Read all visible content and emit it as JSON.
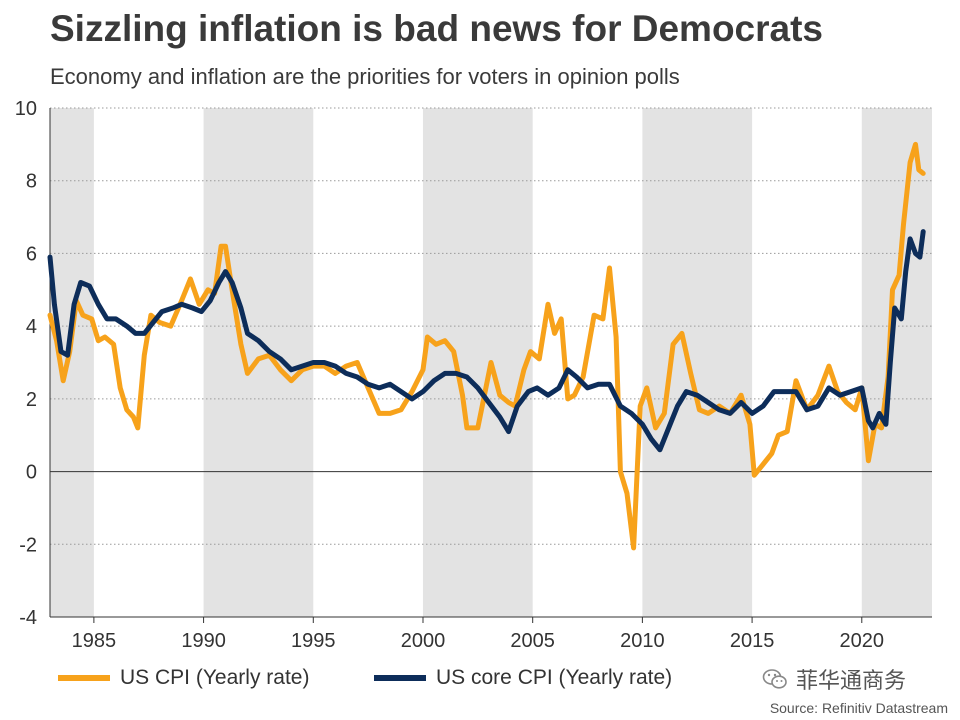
{
  "header": {
    "title": "Sizzling inflation is bad news for Democrats",
    "subtitle": "Economy and inflation are the priorities for voters in opinion polls"
  },
  "footer": {
    "source": "Source: Refinitiv Datastream",
    "watermark": "菲华通商务",
    "watermark_icon": "wechat-icon"
  },
  "chart_data": {
    "type": "line",
    "title": "Sizzling inflation is bad news for Democrats",
    "subtitle": "Economy and inflation are the priorities for voters in opinion polls",
    "xlabel": "",
    "ylabel": "",
    "xlim": [
      1983,
      2023.2
    ],
    "ylim": [
      -4,
      10
    ],
    "x_ticks": [
      1985,
      1990,
      1995,
      2000,
      2005,
      2010,
      2015,
      2020
    ],
    "y_ticks": [
      -4,
      -2,
      0,
      2,
      4,
      6,
      8,
      10
    ],
    "grid": "horizontal dotted",
    "zero_line": true,
    "recession_shading_note": "alternating grey shaded 5-year bands",
    "shaded_bands": [
      [
        1983,
        1985
      ],
      [
        1990,
        1995
      ],
      [
        2000,
        2005
      ],
      [
        2010,
        2015
      ],
      [
        2020,
        2023.2
      ]
    ],
    "legend_position": "bottom-left",
    "series": [
      {
        "name": "US CPI (Yearly rate)",
        "color": "#f7a21b",
        "points": [
          [
            1983.0,
            4.3
          ],
          [
            1983.3,
            3.6
          ],
          [
            1983.6,
            2.5
          ],
          [
            1983.9,
            3.3
          ],
          [
            1984.2,
            4.7
          ],
          [
            1984.5,
            4.3
          ],
          [
            1984.9,
            4.2
          ],
          [
            1985.2,
            3.6
          ],
          [
            1985.5,
            3.7
          ],
          [
            1985.9,
            3.5
          ],
          [
            1986.2,
            2.3
          ],
          [
            1986.5,
            1.7
          ],
          [
            1986.8,
            1.5
          ],
          [
            1987.0,
            1.2
          ],
          [
            1987.3,
            3.2
          ],
          [
            1987.6,
            4.3
          ],
          [
            1988.0,
            4.1
          ],
          [
            1988.5,
            4.0
          ],
          [
            1989.0,
            4.7
          ],
          [
            1989.4,
            5.3
          ],
          [
            1989.8,
            4.6
          ],
          [
            1990.2,
            5.0
          ],
          [
            1990.5,
            4.9
          ],
          [
            1990.8,
            6.2
          ],
          [
            1991.0,
            6.2
          ],
          [
            1991.3,
            5.0
          ],
          [
            1991.7,
            3.5
          ],
          [
            1992.0,
            2.7
          ],
          [
            1992.5,
            3.1
          ],
          [
            1993.0,
            3.2
          ],
          [
            1993.5,
            2.8
          ],
          [
            1994.0,
            2.5
          ],
          [
            1994.5,
            2.8
          ],
          [
            1995.0,
            2.9
          ],
          [
            1995.5,
            2.9
          ],
          [
            1996.0,
            2.7
          ],
          [
            1996.5,
            2.9
          ],
          [
            1997.0,
            3.0
          ],
          [
            1997.5,
            2.3
          ],
          [
            1998.0,
            1.6
          ],
          [
            1998.5,
            1.6
          ],
          [
            1999.0,
            1.7
          ],
          [
            1999.5,
            2.2
          ],
          [
            2000.0,
            2.8
          ],
          [
            2000.2,
            3.7
          ],
          [
            2000.6,
            3.5
          ],
          [
            2001.0,
            3.6
          ],
          [
            2001.4,
            3.3
          ],
          [
            2001.8,
            2.1
          ],
          [
            2002.0,
            1.2
          ],
          [
            2002.5,
            1.2
          ],
          [
            2002.8,
            2.1
          ],
          [
            2003.1,
            3.0
          ],
          [
            2003.5,
            2.1
          ],
          [
            2003.9,
            1.9
          ],
          [
            2004.2,
            1.8
          ],
          [
            2004.6,
            2.8
          ],
          [
            2004.9,
            3.3
          ],
          [
            2005.3,
            3.1
          ],
          [
            2005.7,
            4.6
          ],
          [
            2006.0,
            3.8
          ],
          [
            2006.3,
            4.2
          ],
          [
            2006.6,
            2.0
          ],
          [
            2006.9,
            2.1
          ],
          [
            2007.3,
            2.6
          ],
          [
            2007.8,
            4.3
          ],
          [
            2008.2,
            4.2
          ],
          [
            2008.5,
            5.6
          ],
          [
            2008.8,
            3.7
          ],
          [
            2009.0,
            0.0
          ],
          [
            2009.3,
            -0.6
          ],
          [
            2009.6,
            -2.1
          ],
          [
            2009.9,
            1.8
          ],
          [
            2010.2,
            2.3
          ],
          [
            2010.6,
            1.2
          ],
          [
            2011.0,
            1.6
          ],
          [
            2011.4,
            3.5
          ],
          [
            2011.8,
            3.8
          ],
          [
            2012.2,
            2.7
          ],
          [
            2012.6,
            1.7
          ],
          [
            2013.0,
            1.6
          ],
          [
            2013.5,
            1.8
          ],
          [
            2014.0,
            1.6
          ],
          [
            2014.5,
            2.1
          ],
          [
            2014.9,
            1.3
          ],
          [
            2015.1,
            -0.1
          ],
          [
            2015.5,
            0.2
          ],
          [
            2015.9,
            0.5
          ],
          [
            2016.2,
            1.0
          ],
          [
            2016.6,
            1.1
          ],
          [
            2017.0,
            2.5
          ],
          [
            2017.5,
            1.7
          ],
          [
            2018.0,
            2.1
          ],
          [
            2018.5,
            2.9
          ],
          [
            2018.9,
            2.2
          ],
          [
            2019.3,
            1.9
          ],
          [
            2019.7,
            1.7
          ],
          [
            2020.0,
            2.3
          ],
          [
            2020.3,
            0.3
          ],
          [
            2020.6,
            1.3
          ],
          [
            2020.9,
            1.2
          ],
          [
            2021.2,
            2.6
          ],
          [
            2021.4,
            5.0
          ],
          [
            2021.7,
            5.4
          ],
          [
            2021.9,
            6.8
          ],
          [
            2022.2,
            8.5
          ],
          [
            2022.45,
            9.0
          ],
          [
            2022.6,
            8.3
          ],
          [
            2022.8,
            8.2
          ]
        ]
      },
      {
        "name": "US core CPI (Yearly rate)",
        "color": "#0d2d5a",
        "points": [
          [
            1983.0,
            5.9
          ],
          [
            1983.2,
            4.6
          ],
          [
            1983.5,
            3.3
          ],
          [
            1983.8,
            3.2
          ],
          [
            1984.1,
            4.6
          ],
          [
            1984.4,
            5.2
          ],
          [
            1984.8,
            5.1
          ],
          [
            1985.2,
            4.6
          ],
          [
            1985.6,
            4.2
          ],
          [
            1986.0,
            4.2
          ],
          [
            1986.5,
            4.0
          ],
          [
            1986.9,
            3.8
          ],
          [
            1987.3,
            3.8
          ],
          [
            1987.7,
            4.1
          ],
          [
            1988.1,
            4.4
          ],
          [
            1988.6,
            4.5
          ],
          [
            1989.0,
            4.6
          ],
          [
            1989.5,
            4.5
          ],
          [
            1989.9,
            4.4
          ],
          [
            1990.3,
            4.7
          ],
          [
            1990.7,
            5.2
          ],
          [
            1991.0,
            5.5
          ],
          [
            1991.3,
            5.2
          ],
          [
            1991.7,
            4.5
          ],
          [
            1992.0,
            3.8
          ],
          [
            1992.5,
            3.6
          ],
          [
            1993.0,
            3.3
          ],
          [
            1993.5,
            3.1
          ],
          [
            1994.0,
            2.8
          ],
          [
            1994.5,
            2.9
          ],
          [
            1995.0,
            3.0
          ],
          [
            1995.5,
            3.0
          ],
          [
            1996.0,
            2.9
          ],
          [
            1996.5,
            2.7
          ],
          [
            1997.0,
            2.6
          ],
          [
            1997.5,
            2.4
          ],
          [
            1998.0,
            2.3
          ],
          [
            1998.5,
            2.4
          ],
          [
            1999.0,
            2.2
          ],
          [
            1999.5,
            2.0
          ],
          [
            2000.0,
            2.2
          ],
          [
            2000.5,
            2.5
          ],
          [
            2001.0,
            2.7
          ],
          [
            2001.5,
            2.7
          ],
          [
            2002.0,
            2.6
          ],
          [
            2002.5,
            2.3
          ],
          [
            2003.0,
            1.9
          ],
          [
            2003.5,
            1.5
          ],
          [
            2003.9,
            1.1
          ],
          [
            2004.3,
            1.8
          ],
          [
            2004.8,
            2.2
          ],
          [
            2005.2,
            2.3
          ],
          [
            2005.7,
            2.1
          ],
          [
            2006.2,
            2.3
          ],
          [
            2006.6,
            2.8
          ],
          [
            2007.0,
            2.6
          ],
          [
            2007.5,
            2.3
          ],
          [
            2008.0,
            2.4
          ],
          [
            2008.5,
            2.4
          ],
          [
            2009.0,
            1.8
          ],
          [
            2009.5,
            1.6
          ],
          [
            2010.0,
            1.3
          ],
          [
            2010.4,
            0.9
          ],
          [
            2010.8,
            0.6
          ],
          [
            2011.2,
            1.2
          ],
          [
            2011.6,
            1.8
          ],
          [
            2012.0,
            2.2
          ],
          [
            2012.5,
            2.1
          ],
          [
            2013.0,
            1.9
          ],
          [
            2013.5,
            1.7
          ],
          [
            2014.0,
            1.6
          ],
          [
            2014.5,
            1.9
          ],
          [
            2015.0,
            1.6
          ],
          [
            2015.5,
            1.8
          ],
          [
            2016.0,
            2.2
          ],
          [
            2016.5,
            2.2
          ],
          [
            2017.0,
            2.2
          ],
          [
            2017.5,
            1.7
          ],
          [
            2018.0,
            1.8
          ],
          [
            2018.5,
            2.3
          ],
          [
            2019.0,
            2.1
          ],
          [
            2019.5,
            2.2
          ],
          [
            2020.0,
            2.3
          ],
          [
            2020.3,
            1.4
          ],
          [
            2020.5,
            1.2
          ],
          [
            2020.8,
            1.6
          ],
          [
            2021.1,
            1.3
          ],
          [
            2021.3,
            3.0
          ],
          [
            2021.5,
            4.5
          ],
          [
            2021.8,
            4.2
          ],
          [
            2022.0,
            5.5
          ],
          [
            2022.2,
            6.4
          ],
          [
            2022.45,
            6.0
          ],
          [
            2022.65,
            5.9
          ],
          [
            2022.8,
            6.6
          ]
        ]
      }
    ]
  }
}
